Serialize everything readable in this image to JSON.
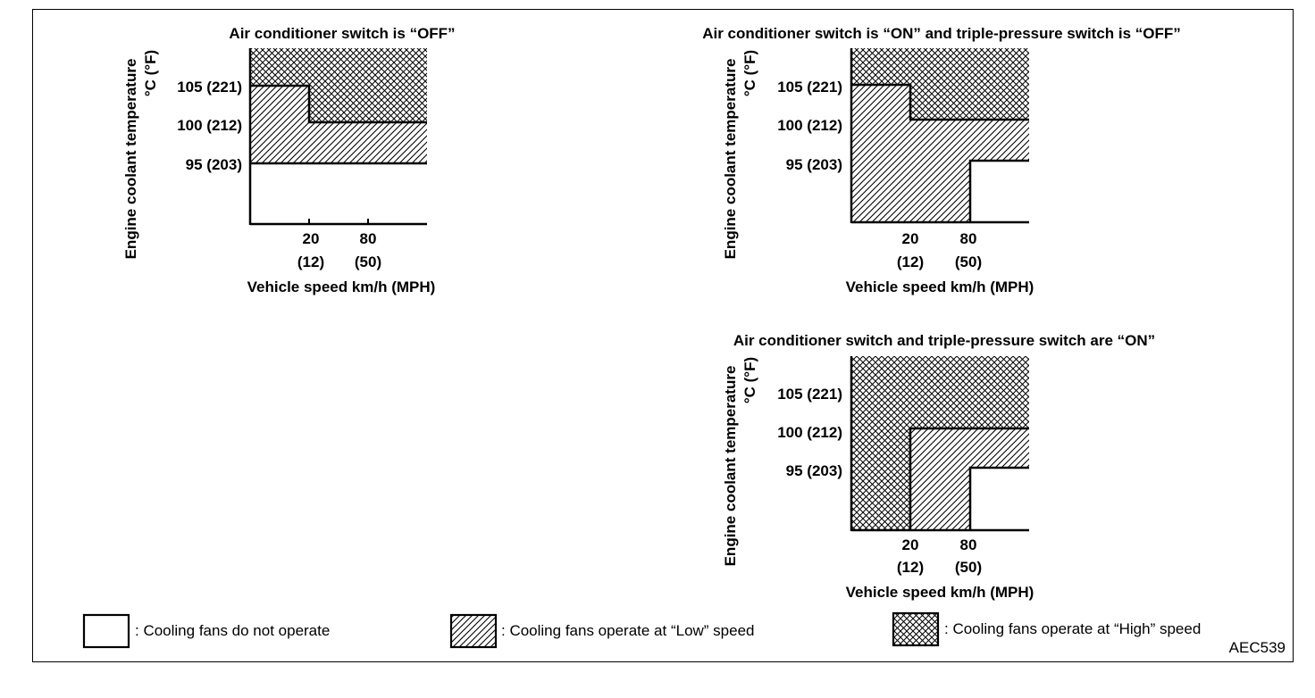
{
  "figure_code": "AEC539",
  "colors": {
    "ink": "#000000",
    "background": "#ffffff"
  },
  "y_axis_label": "Engine coolant temperature",
  "y_axis_unit": "°C (°F)",
  "x_axis_label": "Vehicle speed km/h (MPH)",
  "y_ticks": [
    "105 (221)",
    "100 (212)",
    "95 (203)"
  ],
  "x_ticks": [
    {
      "value": "20",
      "sub": "(12)"
    },
    {
      "value": "80",
      "sub": "(50)"
    }
  ],
  "panels": [
    {
      "title": "Air conditioner switch is “OFF”",
      "regions": [
        {
          "fill": "high",
          "speed_from": "0",
          "speed_to": "20",
          "temp_above": "105"
        },
        {
          "fill": "high",
          "speed_from": "20",
          "speed_to": "max",
          "temp_above": "100"
        },
        {
          "fill": "low",
          "speed_from": "0",
          "speed_to": "20",
          "temp_range": "95-105"
        },
        {
          "fill": "low",
          "speed_from": "20",
          "speed_to": "max",
          "temp_range": "95-100"
        },
        {
          "fill": "none",
          "temp_below": "95"
        }
      ]
    },
    {
      "title": "Air conditioner switch is “ON” and triple-pressure switch is “OFF”",
      "regions": [
        {
          "fill": "high",
          "speed_from": "0",
          "speed_to": "20",
          "temp_above": "105"
        },
        {
          "fill": "high",
          "speed_from": "20",
          "speed_to": "max",
          "temp_above": "100"
        },
        {
          "fill": "low",
          "speed_from": "0",
          "speed_to": "80",
          "temp_below": "105/100"
        },
        {
          "fill": "low",
          "speed_from": "80",
          "speed_to": "max",
          "temp_range": "95-100"
        },
        {
          "fill": "none",
          "speed_from": "80",
          "speed_to": "max",
          "temp_below": "95"
        }
      ]
    },
    {
      "title": "Air conditioner switch and triple-pressure switch are “ON”",
      "regions": [
        {
          "fill": "high",
          "speed_from": "0",
          "speed_to": "20",
          "temp_all": true
        },
        {
          "fill": "high",
          "speed_from": "20",
          "speed_to": "max",
          "temp_above": "100"
        },
        {
          "fill": "low",
          "speed_from": "20",
          "speed_to": "80",
          "temp_below": "100"
        },
        {
          "fill": "low",
          "speed_from": "80",
          "speed_to": "max",
          "temp_range": "95-100"
        },
        {
          "fill": "none",
          "speed_from": "80",
          "speed_to": "max",
          "temp_below": "95"
        }
      ]
    }
  ],
  "legend": [
    {
      "pattern": "none",
      "label": ": Cooling fans do not operate"
    },
    {
      "pattern": "low",
      "label": ": Cooling fans operate at “Low” speed"
    },
    {
      "pattern": "high",
      "label": ": Cooling fans operate at “High” speed"
    }
  ]
}
